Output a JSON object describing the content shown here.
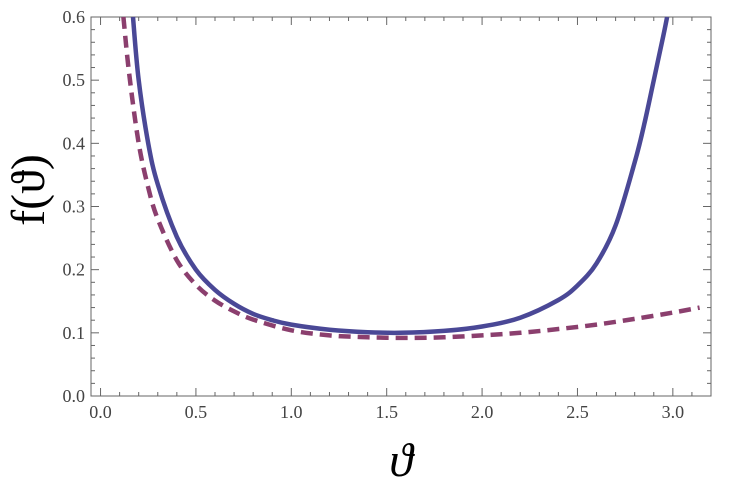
{
  "chart_data": {
    "type": "line",
    "xlabel": "ϑ",
    "ylabel": "f(ϑ)",
    "xlim": [
      -0.05,
      3.2
    ],
    "ylim": [
      0.0,
      0.6
    ],
    "x_ticks": [
      0.0,
      0.5,
      1.0,
      1.5,
      2.0,
      2.5,
      3.0
    ],
    "x_tick_labels": [
      "0.0",
      "0.5",
      "1.0",
      "1.5",
      "2.0",
      "2.5",
      "3.0"
    ],
    "y_ticks": [
      0.0,
      0.1,
      0.2,
      0.3,
      0.4,
      0.5,
      0.6
    ],
    "y_tick_labels": [
      "0.0",
      "0.1",
      "0.2",
      "0.3",
      "0.4",
      "0.5",
      "0.6"
    ],
    "grid": false,
    "series": [
      {
        "style": "solid",
        "color": "#4a4896",
        "x": [
          0.17,
          0.2,
          0.25,
          0.3,
          0.4,
          0.5,
          0.6,
          0.7,
          0.8,
          0.9,
          1.0,
          1.2,
          1.4,
          1.57,
          1.8,
          2.0,
          2.2,
          2.4,
          2.5,
          2.6,
          2.7,
          2.8,
          2.85,
          2.9,
          2.95,
          2.97
        ],
        "y": [
          0.6,
          0.5,
          0.4,
          0.335,
          0.252,
          0.2,
          0.168,
          0.146,
          0.13,
          0.12,
          0.113,
          0.105,
          0.101,
          0.1,
          0.103,
          0.11,
          0.124,
          0.152,
          0.175,
          0.21,
          0.27,
          0.37,
          0.43,
          0.5,
          0.57,
          0.6
        ]
      },
      {
        "style": "dashed",
        "color": "#8b3f6e",
        "x": [
          0.12,
          0.15,
          0.2,
          0.25,
          0.3,
          0.4,
          0.5,
          0.6,
          0.7,
          0.8,
          1.0,
          1.2,
          1.4,
          1.6,
          1.8,
          2.0,
          2.2,
          2.4,
          2.6,
          2.8,
          3.0,
          3.14
        ],
        "y": [
          0.6,
          0.51,
          0.4,
          0.33,
          0.28,
          0.215,
          0.176,
          0.151,
          0.134,
          0.121,
          0.104,
          0.096,
          0.093,
          0.092,
          0.093,
          0.096,
          0.1,
          0.106,
          0.113,
          0.122,
          0.132,
          0.14
        ]
      }
    ]
  }
}
